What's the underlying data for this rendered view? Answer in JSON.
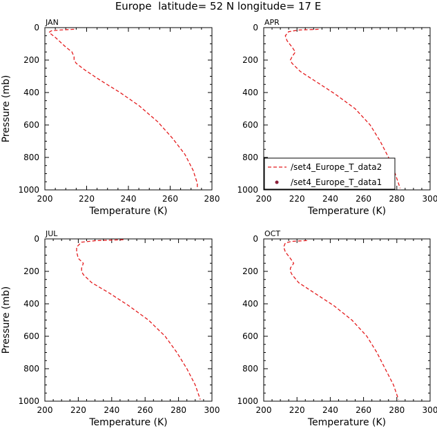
{
  "figure": {
    "title": "Europe  latitude= 52 N longitude= 17 E"
  },
  "legend": {
    "entries": [
      {
        "label": "/set4_Europe_T_data2",
        "style": "dashed-line",
        "color": "#e41a1c"
      },
      {
        "label": "/set4_Europe_T_data1",
        "style": "dot",
        "color": "#8b1f3a"
      }
    ]
  },
  "colors": {
    "series_line": "#e41a1c",
    "marker": "#8b1f3a",
    "axis": "#000000"
  },
  "chart_data": [
    {
      "type": "line",
      "panel": "JAN",
      "xlabel": "Temperature  (K)",
      "ylabel": "Pressure (mb)",
      "xlim": [
        200,
        280
      ],
      "ylim": [
        1000,
        0
      ],
      "y_inverted": true,
      "xticks": [
        200,
        220,
        240,
        260,
        280
      ],
      "yticks": [
        0,
        200,
        400,
        600,
        800,
        1000
      ],
      "series": [
        {
          "x": [
            214,
            207,
            203,
            202,
            205,
            210,
            213,
            214,
            214,
            215,
            219,
            226,
            236,
            245,
            254,
            261,
            267,
            271,
            273,
            273
          ],
          "y": [
            10,
            15,
            20,
            30,
            60,
            120,
            150,
            180,
            200,
            220,
            260,
            320,
            400,
            480,
            580,
            680,
            780,
            880,
            960,
            990
          ]
        }
      ]
    },
    {
      "type": "line",
      "panel": "APR",
      "xlabel": "Temperature  (K)",
      "ylabel": "",
      "xlim": [
        200,
        300
      ],
      "ylim": [
        1000,
        0
      ],
      "y_inverted": true,
      "xticks": [
        200,
        220,
        240,
        260,
        280,
        300
      ],
      "yticks": [
        0,
        200,
        400,
        600,
        800,
        1000
      ],
      "series": [
        {
          "name": "/set4_Europe_T_data2",
          "x": [
            233,
            221,
            215,
            213,
            214,
            217,
            219,
            217,
            216,
            217,
            222,
            231,
            243,
            255,
            264,
            270,
            275,
            279,
            282
          ],
          "y": [
            10,
            15,
            25,
            50,
            80,
            120,
            150,
            180,
            200,
            220,
            270,
            330,
            410,
            500,
            600,
            700,
            800,
            900,
            990
          ]
        }
      ]
    },
    {
      "type": "line",
      "panel": "JUL",
      "xlabel": "Temperature  (K)",
      "ylabel": "Pressure (mb)",
      "xlim": [
        200,
        300
      ],
      "ylim": [
        1000,
        0
      ],
      "y_inverted": true,
      "xticks": [
        200,
        220,
        240,
        260,
        280,
        300
      ],
      "yticks": [
        0,
        200,
        400,
        600,
        800,
        1000
      ],
      "series": [
        {
          "x": [
            247,
            231,
            222,
            219,
            219,
            220,
            223,
            222,
            222,
            223,
            228,
            238,
            250,
            262,
            272,
            279,
            285,
            290,
            293
          ],
          "y": [
            5,
            10,
            20,
            50,
            80,
            120,
            150,
            180,
            200,
            220,
            270,
            330,
            410,
            500,
            600,
            700,
            800,
            900,
            990
          ]
        }
      ]
    },
    {
      "type": "line",
      "panel": "OCT",
      "xlabel": "Temperature  (K)",
      "ylabel": "",
      "xlim": [
        200,
        300
      ],
      "ylim": [
        1000,
        0
      ],
      "y_inverted": true,
      "xticks": [
        200,
        220,
        240,
        260,
        280,
        300
      ],
      "yticks": [
        0,
        200,
        400,
        600,
        800,
        1000
      ],
      "series": [
        {
          "x": [
            226,
            217,
            213,
            212,
            213,
            216,
            218,
            216,
            216,
            217,
            221,
            230,
            242,
            253,
            262,
            268,
            273,
            278,
            281
          ],
          "y": [
            10,
            15,
            25,
            50,
            80,
            120,
            150,
            180,
            200,
            220,
            270,
            330,
            410,
            500,
            600,
            700,
            800,
            900,
            990
          ]
        }
      ]
    }
  ]
}
